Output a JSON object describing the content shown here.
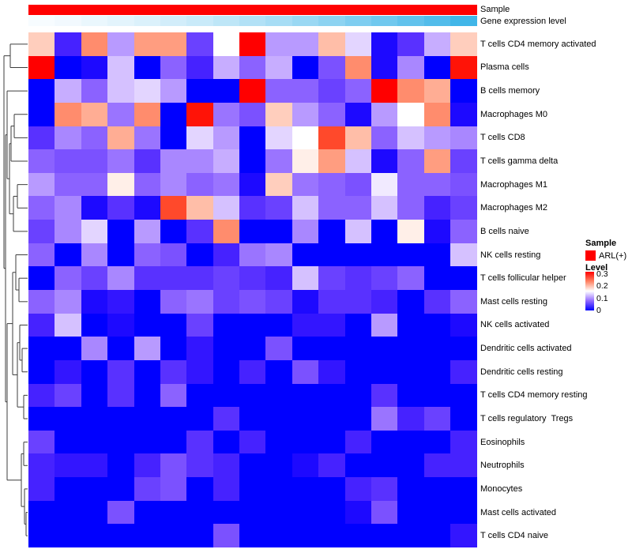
{
  "figure": {
    "background": "#ffffff",
    "accent_red": "#ff0000",
    "accent_blue": "#0000ff"
  },
  "top_annotations": {
    "sample": {
      "label": "Sample",
      "color": "#ff0000"
    },
    "gene_expression": {
      "label": "Gene expression level",
      "color_low": "#fbfdff",
      "color_high": "#41b6e8",
      "values": [
        0.02,
        0.05,
        0.09,
        0.13,
        0.17,
        0.22,
        0.27,
        0.33,
        0.39,
        0.45,
        0.52,
        0.59,
        0.67,
        0.75,
        0.83,
        0.91,
        1.0
      ]
    }
  },
  "legends": {
    "sample": {
      "title": "Sample",
      "entries": [
        {
          "label": "ARL(+)",
          "color": "#ff0000"
        }
      ]
    },
    "level": {
      "title": "Level",
      "ticks": [
        "0.3",
        "0.2",
        "0.1",
        "0"
      ],
      "color_high": "#ff0000",
      "color_mid": "#ffffff",
      "color_low": "#0000ff"
    }
  },
  "chart_data": {
    "type": "heatmap",
    "title": "",
    "rows": [
      "T cells CD4 memory activated",
      "Plasma cells",
      "B cells memory",
      "Macrophages M0",
      "T cells CD8",
      "T cells gamma delta",
      "Macrophages M1",
      "Macrophages M2",
      "B cells naive",
      "NK cells resting",
      "T cells follicular helper",
      "Mast cells resting",
      "NK cells activated",
      "Dendritic cells activated",
      "Dendritic cells resting",
      "T cells CD4 memory resting",
      "T cells regulatory  Tregs",
      "Eosinophils",
      "Neutrophils",
      "Monocytes",
      "Mast cells activated",
      "T cells CD4 naive"
    ],
    "n_columns": 17,
    "column_labels_visible": false,
    "value_range": [
      0,
      0.3
    ],
    "colormap": "blue-white-red (0 = blue, 0.15 = white, 0.3 = red)",
    "row_dendrogram": true,
    "legend_position": "right",
    "values": [
      [
        0.18,
        0.03,
        0.22,
        0.1,
        0.21,
        0.21,
        0.05,
        0.15,
        0.3,
        0.1,
        0.1,
        0.19,
        0.13,
        0.01,
        0.04,
        0.11,
        0.18
      ],
      [
        0.3,
        0.0,
        0.01,
        0.12,
        0.0,
        0.07,
        0.03,
        0.11,
        0.07,
        0.11,
        0.0,
        0.06,
        0.22,
        0.01,
        0.09,
        0.0,
        0.29
      ],
      [
        0.0,
        0.11,
        0.07,
        0.12,
        0.13,
        0.1,
        0.0,
        0.0,
        0.3,
        0.07,
        0.07,
        0.05,
        0.07,
        0.3,
        0.22,
        0.2,
        0.0
      ],
      [
        0.0,
        0.22,
        0.2,
        0.08,
        0.22,
        0.0,
        0.29,
        0.08,
        0.06,
        0.18,
        0.1,
        0.07,
        0.01,
        0.1,
        0.15,
        0.22,
        0.01
      ],
      [
        0.04,
        0.09,
        0.07,
        0.2,
        0.08,
        0.0,
        0.13,
        0.1,
        0.0,
        0.13,
        0.15,
        0.26,
        0.19,
        0.07,
        0.12,
        0.1,
        0.09
      ],
      [
        0.07,
        0.06,
        0.06,
        0.08,
        0.04,
        0.09,
        0.09,
        0.11,
        0.0,
        0.08,
        0.16,
        0.21,
        0.12,
        0.01,
        0.07,
        0.21,
        0.05
      ],
      [
        0.1,
        0.07,
        0.07,
        0.16,
        0.07,
        0.09,
        0.07,
        0.08,
        0.01,
        0.18,
        0.08,
        0.07,
        0.06,
        0.14,
        0.07,
        0.07,
        0.06
      ],
      [
        0.07,
        0.09,
        0.01,
        0.04,
        0.01,
        0.26,
        0.19,
        0.12,
        0.04,
        0.05,
        0.12,
        0.07,
        0.07,
        0.12,
        0.07,
        0.03,
        0.05
      ],
      [
        0.05,
        0.09,
        0.13,
        0.0,
        0.1,
        0.0,
        0.04,
        0.22,
        0.0,
        0.0,
        0.09,
        0.0,
        0.12,
        0.0,
        0.16,
        0.01,
        0.07
      ],
      [
        0.07,
        0.0,
        0.09,
        0.0,
        0.07,
        0.06,
        0.0,
        0.03,
        0.08,
        0.09,
        0.0,
        0.0,
        0.0,
        0.0,
        0.0,
        0.0,
        0.12
      ],
      [
        0.0,
        0.07,
        0.05,
        0.09,
        0.04,
        0.04,
        0.04,
        0.05,
        0.04,
        0.03,
        0.12,
        0.05,
        0.04,
        0.05,
        0.07,
        0.0,
        0.0
      ],
      [
        0.07,
        0.09,
        0.01,
        0.02,
        0.0,
        0.07,
        0.08,
        0.05,
        0.06,
        0.05,
        0.01,
        0.04,
        0.04,
        0.03,
        0.0,
        0.04,
        0.07
      ],
      [
        0.03,
        0.12,
        0.0,
        0.01,
        0.0,
        0.0,
        0.05,
        0.0,
        0.0,
        0.0,
        0.02,
        0.02,
        0.0,
        0.1,
        0.0,
        0.0,
        0.01
      ],
      [
        0.0,
        0.0,
        0.09,
        0.0,
        0.1,
        0.0,
        0.02,
        0.0,
        0.0,
        0.06,
        0.0,
        0.0,
        0.0,
        0.0,
        0.0,
        0.0,
        0.0
      ],
      [
        0.0,
        0.02,
        0.0,
        0.04,
        0.0,
        0.04,
        0.02,
        0.0,
        0.03,
        0.0,
        0.06,
        0.02,
        0.0,
        0.0,
        0.0,
        0.0,
        0.03
      ],
      [
        0.03,
        0.05,
        0.0,
        0.04,
        0.0,
        0.07,
        0.0,
        0.0,
        0.0,
        0.0,
        0.0,
        0.0,
        0.0,
        0.04,
        0.0,
        0.0,
        0.0
      ],
      [
        0.0,
        0.0,
        0.0,
        0.0,
        0.0,
        0.0,
        0.0,
        0.04,
        0.0,
        0.0,
        0.0,
        0.0,
        0.0,
        0.08,
        0.03,
        0.05,
        0.0
      ],
      [
        0.05,
        0.0,
        0.0,
        0.0,
        0.0,
        0.0,
        0.04,
        0.0,
        0.03,
        0.0,
        0.0,
        0.0,
        0.03,
        0.0,
        0.0,
        0.0,
        0.03
      ],
      [
        0.03,
        0.02,
        0.02,
        0.0,
        0.03,
        0.06,
        0.04,
        0.03,
        0.0,
        0.0,
        0.01,
        0.03,
        0.0,
        0.0,
        0.0,
        0.03,
        0.03
      ],
      [
        0.03,
        0.0,
        0.0,
        0.0,
        0.05,
        0.06,
        0.0,
        0.03,
        0.0,
        0.0,
        0.0,
        0.0,
        0.03,
        0.04,
        0.0,
        0.0,
        0.0
      ],
      [
        0.0,
        0.0,
        0.0,
        0.06,
        0.0,
        0.0,
        0.0,
        0.0,
        0.0,
        0.0,
        0.0,
        0.0,
        0.01,
        0.06,
        0.0,
        0.0,
        0.0
      ],
      [
        0.0,
        0.0,
        0.0,
        0.0,
        0.0,
        0.0,
        0.0,
        0.06,
        0.0,
        0.0,
        0.0,
        0.0,
        0.0,
        0.0,
        0.0,
        0.0,
        0.02
      ]
    ]
  }
}
